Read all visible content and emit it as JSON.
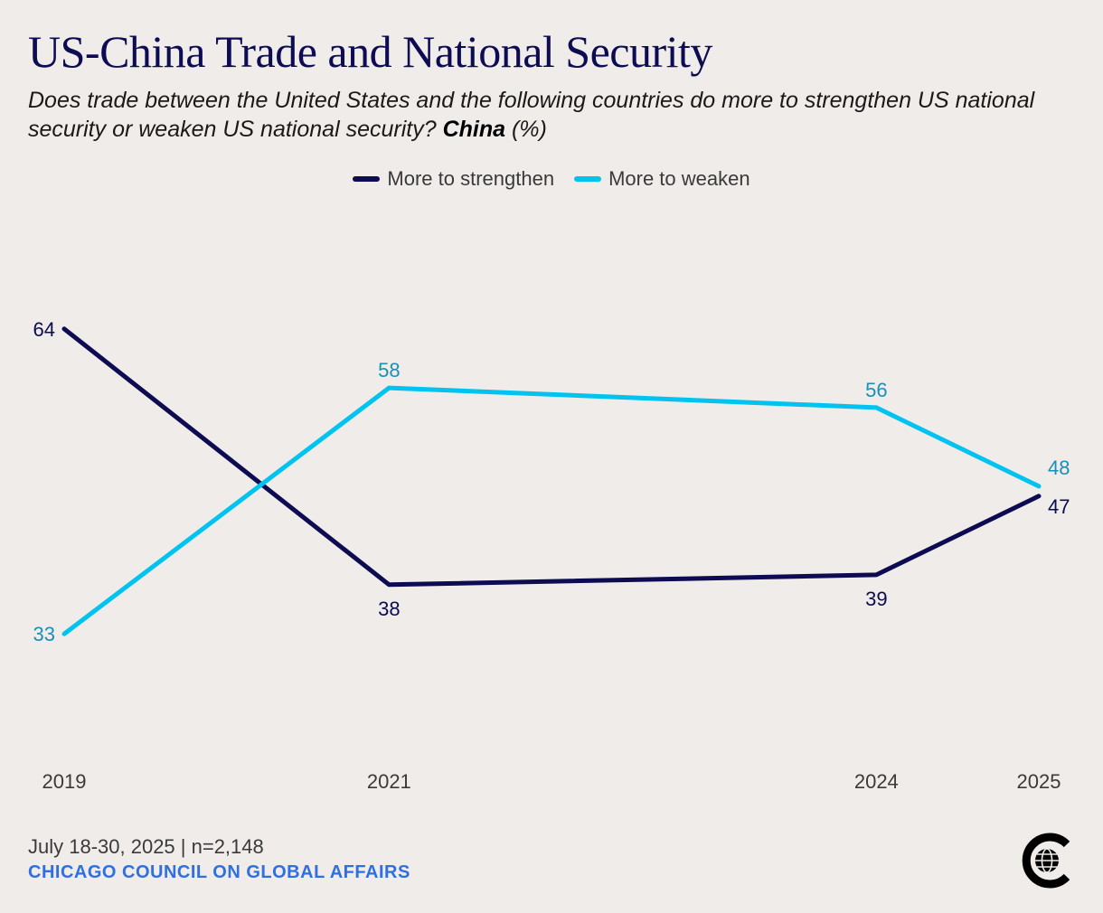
{
  "header": {
    "title": "US-China Trade and National Security",
    "subtitle_main": "Does trade between the United States and the following countries do more to strengthen US national security or weaken US national security?",
    "subtitle_country": "China",
    "subtitle_unit": "(%)"
  },
  "colors": {
    "strengthen": "#0d0b52",
    "weaken": "#00c3ef",
    "weaken_label": "#1a8fb8",
    "source": "#2f6fe0"
  },
  "chart_data": {
    "type": "line",
    "title": "US-China Trade and National Security",
    "x": [
      2019,
      2021,
      2024,
      2025
    ],
    "categories": [
      "2019",
      "2021",
      "2024",
      "2025"
    ],
    "series": [
      {
        "name": "More to strengthen",
        "values": [
          64,
          38,
          39,
          47
        ]
      },
      {
        "name": "More to weaken",
        "values": [
          33,
          58,
          56,
          48
        ]
      }
    ],
    "ylim": [
      23,
      74
    ],
    "xlabel": "",
    "ylabel": "",
    "grid": false,
    "legend": "top-center"
  },
  "footer": {
    "note": "July 18-30, 2025 | n=2,148",
    "source": "CHICAGO COUNCIL ON GLOBAL AFFAIRS"
  }
}
